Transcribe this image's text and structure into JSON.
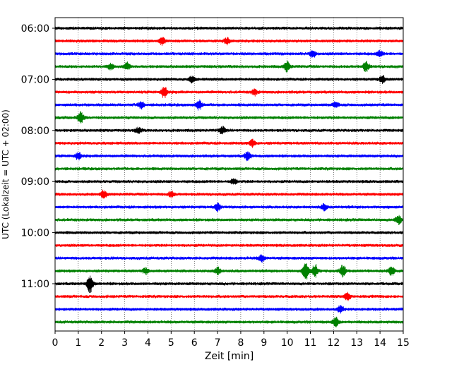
{
  "chart_data": {
    "type": "line",
    "xlabel": "Zeit  [min]",
    "ylabel": "UTC (Lokalzeit = UTC + 02:00)",
    "xlim": [
      0,
      15
    ],
    "x_ticks": [
      0,
      1,
      2,
      3,
      4,
      5,
      6,
      7,
      8,
      9,
      10,
      11,
      12,
      13,
      14,
      15
    ],
    "grid": "vertical dotted at each minute",
    "y_tick_labels": [
      "06:00",
      "07:00",
      "08:00",
      "09:00",
      "10:00",
      "11:00"
    ],
    "trace_interval_min": 15,
    "trace_count": 24,
    "first_trace": "06:00",
    "colors": [
      "#000000",
      "#ff0000",
      "#0000ff",
      "#008000"
    ],
    "events": [
      {
        "trace": "06:15",
        "x": 4.6,
        "amp": 5
      },
      {
        "trace": "06:15",
        "x": 7.4,
        "amp": 4
      },
      {
        "trace": "06:30",
        "x": 11.1,
        "amp": 5
      },
      {
        "trace": "06:30",
        "x": 14.0,
        "amp": 4
      },
      {
        "trace": "06:45",
        "x": 2.4,
        "amp": 4
      },
      {
        "trace": "06:45",
        "x": 3.1,
        "amp": 5
      },
      {
        "trace": "06:45",
        "x": 10.0,
        "amp": 7
      },
      {
        "trace": "06:45",
        "x": 13.4,
        "amp": 7
      },
      {
        "trace": "07:00",
        "x": 5.9,
        "amp": 4
      },
      {
        "trace": "07:00",
        "x": 14.1,
        "amp": 5
      },
      {
        "trace": "07:15",
        "x": 4.7,
        "amp": 8
      },
      {
        "trace": "07:15",
        "x": 8.6,
        "amp": 4
      },
      {
        "trace": "07:30",
        "x": 6.2,
        "amp": 7
      },
      {
        "trace": "07:30",
        "x": 3.7,
        "amp": 5
      },
      {
        "trace": "07:30",
        "x": 12.1,
        "amp": 4
      },
      {
        "trace": "07:45",
        "x": 1.1,
        "amp": 8
      },
      {
        "trace": "08:00",
        "x": 7.2,
        "amp": 5
      },
      {
        "trace": "08:00",
        "x": 3.6,
        "amp": 4
      },
      {
        "trace": "08:15",
        "x": 8.5,
        "amp": 5
      },
      {
        "trace": "08:30",
        "x": 8.3,
        "amp": 6
      },
      {
        "trace": "08:30",
        "x": 1.0,
        "amp": 5
      },
      {
        "trace": "09:00",
        "x": 7.7,
        "amp": 4
      },
      {
        "trace": "09:15",
        "x": 2.1,
        "amp": 5
      },
      {
        "trace": "09:15",
        "x": 5.0,
        "amp": 4
      },
      {
        "trace": "09:30",
        "x": 7.0,
        "amp": 5
      },
      {
        "trace": "09:30",
        "x": 11.6,
        "amp": 4
      },
      {
        "trace": "09:45",
        "x": 14.8,
        "amp": 6
      },
      {
        "trace": "10:30",
        "x": 8.9,
        "amp": 5
      },
      {
        "trace": "10:45",
        "x": 10.8,
        "amp": 13
      },
      {
        "trace": "10:45",
        "x": 11.2,
        "amp": 9
      },
      {
        "trace": "10:45",
        "x": 12.4,
        "amp": 8
      },
      {
        "trace": "10:45",
        "x": 14.5,
        "amp": 6
      },
      {
        "trace": "10:45",
        "x": 7.0,
        "amp": 5
      },
      {
        "trace": "10:45",
        "x": 3.9,
        "amp": 4
      },
      {
        "trace": "11:00",
        "x": 1.5,
        "amp": 13
      },
      {
        "trace": "11:15",
        "x": 12.6,
        "amp": 5
      },
      {
        "trace": "11:30",
        "x": 12.3,
        "amp": 5
      },
      {
        "trace": "11:45",
        "x": 12.1,
        "amp": 6
      }
    ]
  }
}
